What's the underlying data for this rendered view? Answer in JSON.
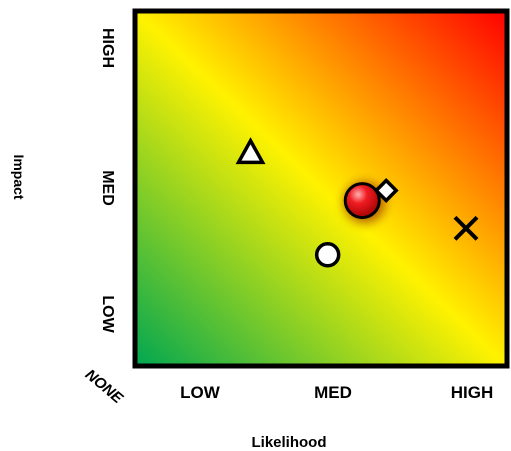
{
  "chart_data": {
    "type": "scatter",
    "title": "",
    "xlabel": "Likelihood",
    "ylabel": "Impact",
    "origin_label": "NONE",
    "x_ticks": [
      {
        "label": "LOW",
        "value": 1
      },
      {
        "label": "MED",
        "value": 2
      },
      {
        "label": "HIGH",
        "value": 3
      }
    ],
    "y_ticks": [
      {
        "label": "LOW",
        "value": 1
      },
      {
        "label": "MED",
        "value": 2
      },
      {
        "label": "HIGH",
        "value": 3
      }
    ],
    "xlim": [
      0,
      3.3
    ],
    "ylim": [
      0,
      3.3
    ],
    "grid": false,
    "background": "risk gradient (green low-low to red high-high)",
    "points": [
      {
        "marker": "triangle",
        "x": 1.38,
        "y": 2.28,
        "color": "#ffffff"
      },
      {
        "marker": "circle",
        "x": 1.96,
        "y": 1.47,
        "color": "#ffffff"
      },
      {
        "marker": "circle-large",
        "x": 2.22,
        "y": 1.9,
        "color": "#e8121a"
      },
      {
        "marker": "diamond",
        "x": 2.4,
        "y": 1.98,
        "color": "#ffffff"
      },
      {
        "marker": "x",
        "x": 3.0,
        "y": 1.68,
        "color": "#000000"
      }
    ],
    "colors": {
      "low": "#00a651",
      "mid": "#fff200",
      "high": "#ff0000",
      "frame": "#000000"
    }
  }
}
